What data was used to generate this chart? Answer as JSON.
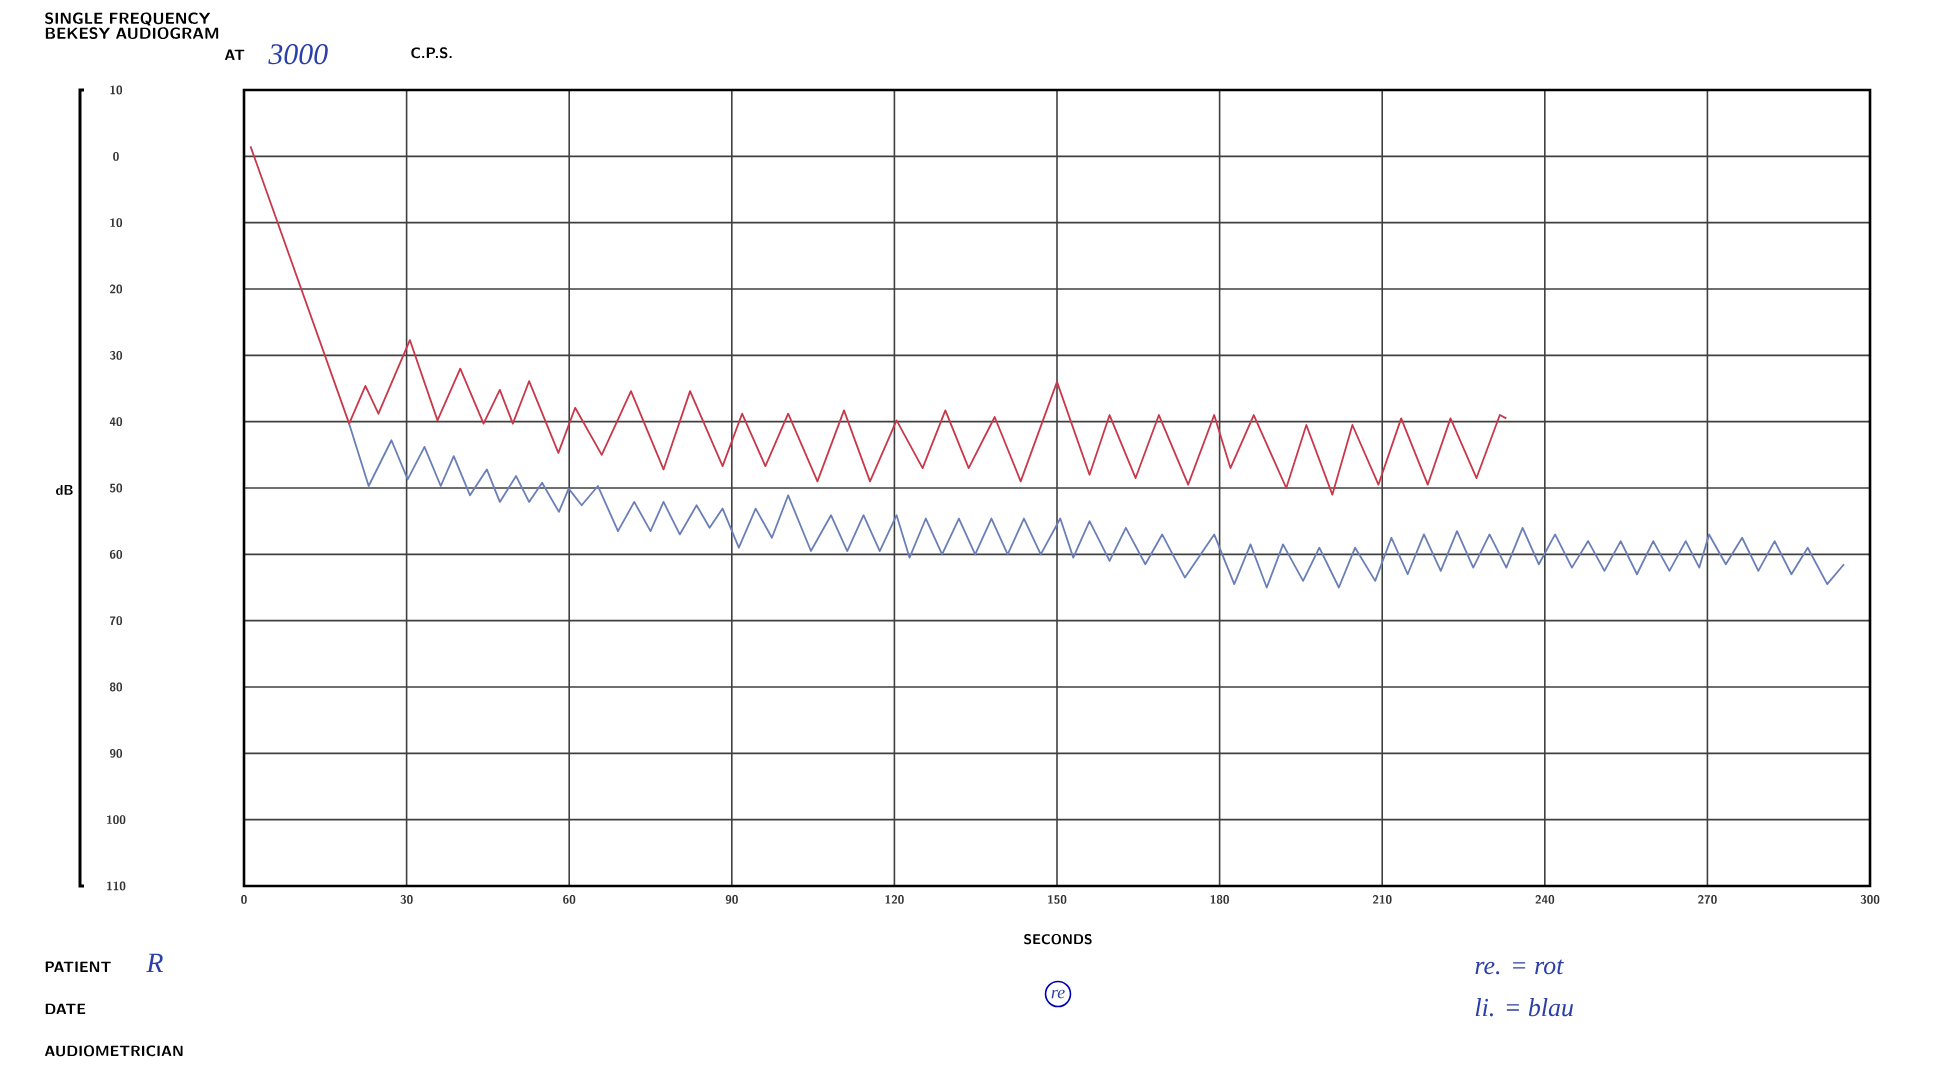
{
  "chart_data": {
    "type": "line",
    "title": "SINGLE FREQUENCY BEKESY AUDIOGRAM",
    "xlabel": "SECONDS",
    "ylabel": "dB",
    "annotations": [
      "AT",
      "3000",
      "C.P.S.",
      "PATIENT",
      "R",
      "DATE",
      "AUDIOMETRICIAN",
      "re",
      "re. = rot",
      "li. = blau"
    ],
    "xlim": [
      0,
      300
    ],
    "xticks": [
      0,
      30,
      60,
      90,
      120,
      150,
      180,
      210,
      240,
      270,
      300
    ],
    "ylim": [
      110,
      -10
    ],
    "yticks": [
      {
        "value": -10,
        "label": "10"
      },
      0,
      10,
      20,
      30,
      40,
      50,
      60,
      70,
      80,
      90,
      100,
      110
    ],
    "grid": true,
    "series": [
      {
        "color": "#c8384a",
        "x": [
          1.2,
          19.4,
          22.4,
          24.8,
          30.6,
          35.7,
          39.9,
          44.2,
          47.2,
          49.6,
          52.6,
          58,
          61.1,
          66,
          71.4,
          77.4,
          82.3,
          88.3,
          91.9,
          96.2,
          100.4,
          105.8,
          110.7,
          115.5,
          120.4,
          125.2,
          129.4,
          133.7,
          138.5,
          143.3,
          150,
          156,
          159.7,
          164.5,
          168.8,
          174.2,
          179,
          182,
          186.3,
          192.3,
          196,
          200.8,
          204.5,
          209.3,
          213.5,
          218.4,
          222.6,
          227.4,
          231.7,
          232.9
        ],
        "values": [
          -1.5,
          40.3,
          34.6,
          38.8,
          27.7,
          39.8,
          32,
          40.3,
          35.2,
          40.3,
          33.9,
          44.7,
          37.9,
          45,
          35.4,
          47.2,
          35.4,
          46.7,
          38.8,
          46.7,
          38.8,
          49,
          38.3,
          49,
          39.8,
          47,
          38.3,
          47,
          39.3,
          49,
          34,
          48,
          39,
          48.5,
          39,
          49.5,
          39,
          47,
          39,
          50,
          40.5,
          51,
          40.5,
          49.5,
          39.5,
          49.5,
          39.5,
          48.5,
          39,
          39.5
        ]
      },
      {
        "color": "#6a7fb8",
        "x": [
          19.4,
          23,
          27.2,
          30.2,
          33.3,
          36.3,
          38.7,
          41.7,
          44.8,
          47.2,
          50.2,
          52.6,
          55,
          58.1,
          59.9,
          62.3,
          65.3,
          69,
          72,
          75,
          77.4,
          80.4,
          83.5,
          85.9,
          88.3,
          91.3,
          94.4,
          97.4,
          100.4,
          104.6,
          108.3,
          111.3,
          114.3,
          117.3,
          120.4,
          122.8,
          125.8,
          128.8,
          131.9,
          134.9,
          137.9,
          140.9,
          143.9,
          147,
          150.6,
          153,
          156,
          159.7,
          162.7,
          166.3,
          169.4,
          173.6,
          179,
          182.7,
          185.7,
          188.7,
          191.7,
          195.4,
          198.4,
          202,
          205,
          208.7,
          211.7,
          214.7,
          217.7,
          220.8,
          223.8,
          226.8,
          229.8,
          232.9,
          235.9,
          238.9,
          241.9,
          245,
          248,
          251,
          254,
          257,
          260,
          263,
          266,
          268.5,
          270.3,
          273.4,
          276.4,
          279.4,
          282.4,
          285.5,
          288.5,
          292.1,
          295.2
        ],
        "values": [
          40.3,
          49.7,
          42.8,
          48.7,
          43.8,
          49.7,
          45.2,
          51.1,
          47.2,
          52.1,
          48.2,
          52.1,
          49.2,
          53.6,
          50.1,
          52.6,
          49.7,
          56.5,
          52.1,
          56.5,
          52.1,
          57,
          52.6,
          56,
          53.1,
          59,
          53.1,
          57.5,
          51.1,
          59.5,
          54.1,
          59.5,
          54.1,
          59.5,
          54.1,
          60.5,
          54.6,
          60,
          54.6,
          60,
          54.6,
          60,
          54.6,
          60,
          54.6,
          60.5,
          55,
          61,
          56,
          61.5,
          57,
          63.5,
          57,
          64.5,
          58.5,
          65,
          58.5,
          64,
          59,
          65,
          59,
          64,
          57.5,
          63,
          57,
          62.5,
          56.5,
          62,
          57,
          62,
          56,
          61.5,
          57,
          62,
          58,
          62.5,
          58,
          63,
          58,
          62.5,
          58,
          62,
          57,
          61.5,
          57.5,
          62.5,
          58,
          63,
          59,
          64.5,
          61.5
        ]
      }
    ]
  }
}
